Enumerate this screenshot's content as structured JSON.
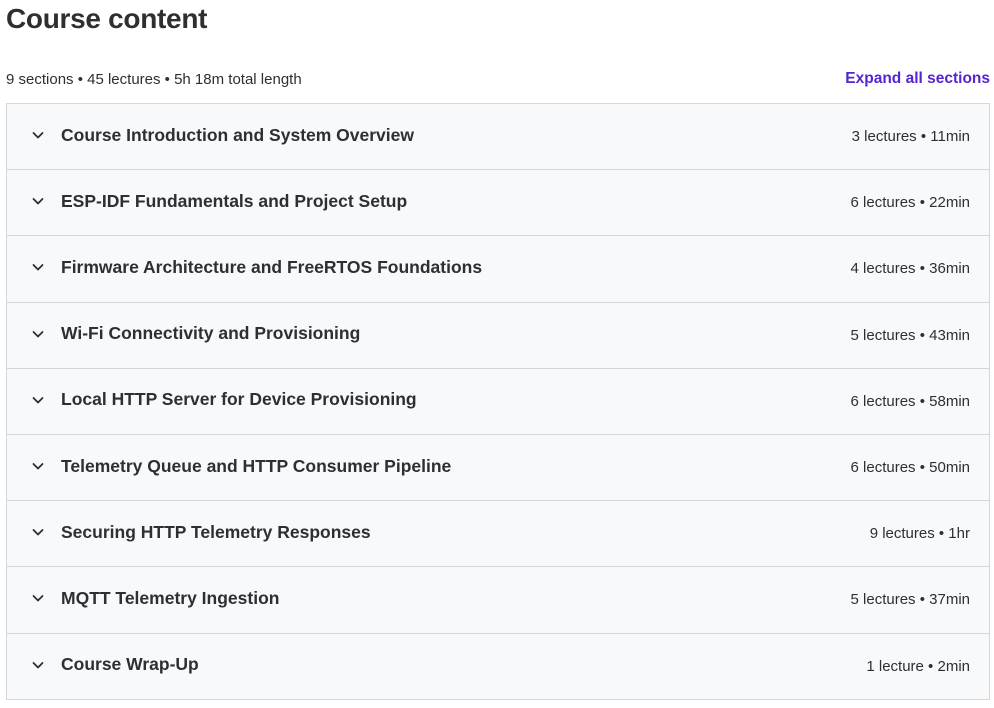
{
  "page_title": "Course content",
  "summary": "9 sections • 45 lectures • 5h 18m total length",
  "expand_all_label": "Expand all sections",
  "colors": {
    "link": "#5624d0",
    "text": "#2d2f31",
    "section_bg": "#f7f9fa",
    "border": "#d1d7dc"
  },
  "sections": [
    {
      "title": "Course Introduction and System Overview",
      "meta": "3 lectures • 11min",
      "icon": "chevron-down-icon"
    },
    {
      "title": "ESP-IDF Fundamentals and Project Setup",
      "meta": "6 lectures • 22min",
      "icon": "chevron-down-icon"
    },
    {
      "title": "Firmware Architecture and FreeRTOS Foundations",
      "meta": "4 lectures • 36min",
      "icon": "chevron-down-icon"
    },
    {
      "title": "Wi-Fi Connectivity and Provisioning",
      "meta": "5 lectures • 43min",
      "icon": "chevron-down-icon"
    },
    {
      "title": "Local HTTP Server for Device Provisioning",
      "meta": "6 lectures • 58min",
      "icon": "chevron-down-icon"
    },
    {
      "title": "Telemetry Queue and HTTP Consumer Pipeline",
      "meta": "6 lectures • 50min",
      "icon": "chevron-down-icon"
    },
    {
      "title": "Securing HTTP Telemetry Responses",
      "meta": "9 lectures • 1hr",
      "icon": "chevron-down-icon"
    },
    {
      "title": "MQTT Telemetry Ingestion",
      "meta": "5 lectures • 37min",
      "icon": "chevron-down-icon"
    },
    {
      "title": "Course Wrap-Up",
      "meta": "1 lecture • 2min",
      "icon": "chevron-down-icon"
    }
  ]
}
